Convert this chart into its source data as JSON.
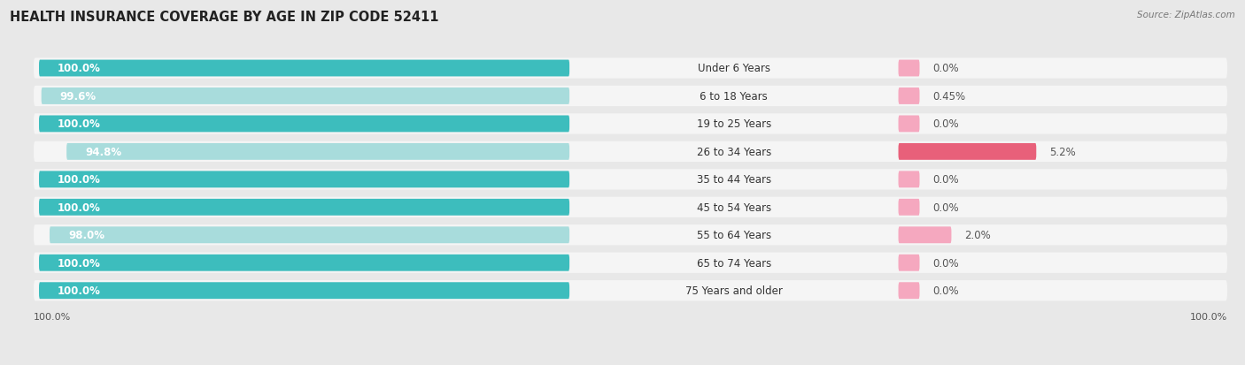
{
  "title": "HEALTH INSURANCE COVERAGE BY AGE IN ZIP CODE 52411",
  "source": "Source: ZipAtlas.com",
  "categories": [
    "Under 6 Years",
    "6 to 18 Years",
    "19 to 25 Years",
    "26 to 34 Years",
    "35 to 44 Years",
    "45 to 54 Years",
    "55 to 64 Years",
    "65 to 74 Years",
    "75 Years and older"
  ],
  "with_coverage": [
    100.0,
    99.55,
    100.0,
    94.8,
    100.0,
    100.0,
    98.0,
    100.0,
    100.0
  ],
  "without_coverage": [
    0.0,
    0.45,
    0.0,
    5.2,
    0.0,
    0.0,
    2.0,
    0.0,
    0.0
  ],
  "with_labels": [
    "100.0%",
    "99.6%",
    "100.0%",
    "94.8%",
    "100.0%",
    "100.0%",
    "98.0%",
    "100.0%",
    "100.0%"
  ],
  "without_labels": [
    "0.0%",
    "0.45%",
    "0.0%",
    "5.2%",
    "0.0%",
    "0.0%",
    "2.0%",
    "0.0%",
    "0.0%"
  ],
  "color_with_full": "#3DBDBD",
  "color_with_partial": "#A8DCDC",
  "color_without_small": "#F5A8BF",
  "color_without_large": "#E8607A",
  "bg_color": "#e8e8e8",
  "row_bg": "#f5f5f5",
  "title_fontsize": 10.5,
  "bar_label_fontsize": 8.5,
  "cat_label_fontsize": 8.5,
  "value_label_fontsize": 8.5,
  "legend_fontsize": 8.5,
  "axis_label_fontsize": 8.0
}
